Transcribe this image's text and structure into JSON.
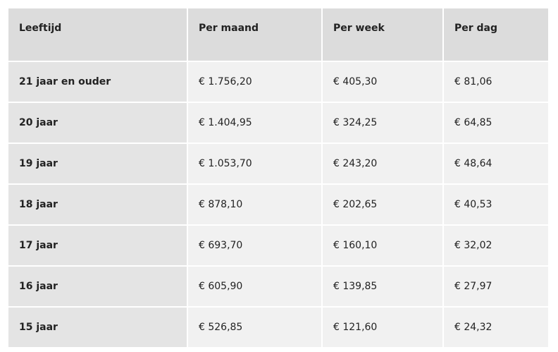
{
  "table": {
    "headers": [
      "Leeftijd",
      "Per maand",
      "Per week",
      "Per dag"
    ],
    "rows": [
      [
        "21 jaar en ouder",
        "€ 1.756,20",
        "€ 405,30",
        "€ 81,06"
      ],
      [
        "20 jaar",
        "€ 1.404,95",
        "€ 324,25",
        "€ 64,85"
      ],
      [
        "19 jaar",
        "€ 1.053,70",
        "€ 243,20",
        "€ 48,64"
      ],
      [
        "18 jaar",
        "€ 878,10",
        "€ 202,65",
        "€ 40,53"
      ],
      [
        "17 jaar",
        "€ 693,70",
        "€ 160,10",
        "€ 32,02"
      ],
      [
        "16 jaar",
        "€ 605,90",
        "€ 139,85",
        "€ 27,97"
      ],
      [
        "15 jaar",
        "€ 526,85",
        "€ 121,60",
        "€ 24,32"
      ]
    ]
  }
}
